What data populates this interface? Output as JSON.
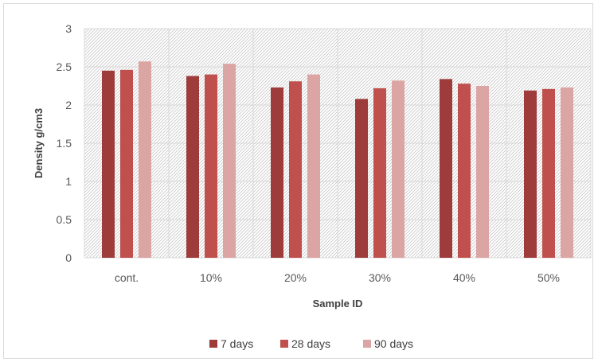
{
  "chart_data": {
    "type": "bar",
    "title": "",
    "xlabel": "Sample ID",
    "ylabel": "Density g/cm3",
    "categories": [
      "cont.",
      "10%",
      "20%",
      "30%",
      "40%",
      "50%"
    ],
    "series": [
      {
        "name": "7  days",
        "color": "#9e3b3b",
        "values": [
          2.45,
          2.38,
          2.23,
          2.08,
          2.34,
          2.19
        ]
      },
      {
        "name": "28 days",
        "color": "#c0504d",
        "values": [
          2.46,
          2.4,
          2.31,
          2.22,
          2.28,
          2.21
        ]
      },
      {
        "name": "90 days",
        "color": "#dba5a3",
        "values": [
          2.57,
          2.54,
          2.4,
          2.32,
          2.25,
          2.23
        ]
      }
    ],
    "ylim": [
      0,
      3
    ],
    "yticks": [
      "0",
      "0.5",
      "1",
      "1.5",
      "2",
      "2.5",
      "3"
    ],
    "grid": true,
    "legend_position": "bottom"
  }
}
